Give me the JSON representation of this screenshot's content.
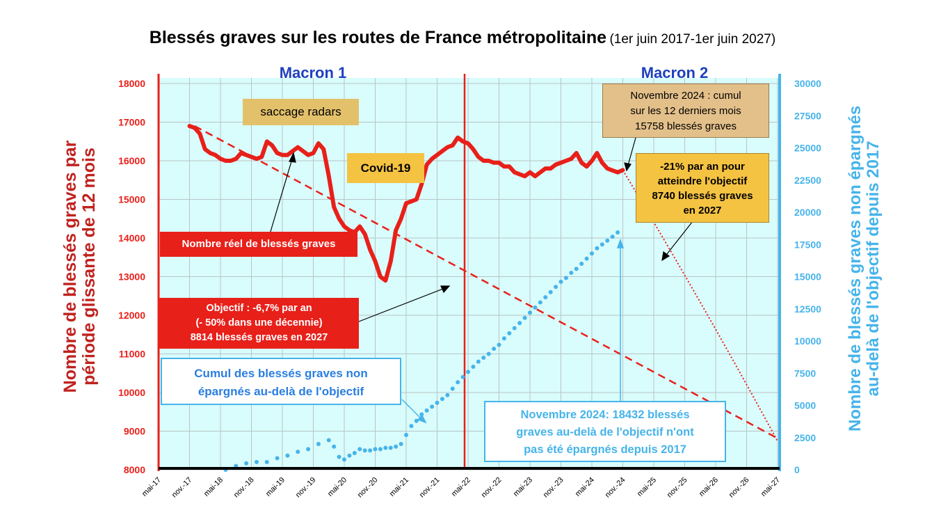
{
  "title": {
    "main": "Blessés graves sur les routes de France métropolitaine",
    "sub": "(1er juin 2017-1er juin 2027)"
  },
  "colors": {
    "red": "#e8201a",
    "plot_bg": "#d9fcfc",
    "blue": "#46b4ea",
    "navy": "#1f3fbf",
    "dark_red": "#c0221e"
  },
  "periods": {
    "macron1": "Macron 1",
    "macron2": "Macron 2"
  },
  "axes": {
    "left_label_line1": "Nombre de blessés graves par",
    "left_label_line2": "période glissante de 12 mois",
    "right_label_line1": "Nombre de blessés graves non épargnés",
    "right_label_line2": "au-delà de l'objectif depuis 2017",
    "left_ticks": [
      "18000",
      "17000",
      "16000",
      "15000",
      "14000",
      "13000",
      "12000",
      "11000",
      "10000",
      "9000",
      "8000"
    ],
    "right_ticks": [
      "30000",
      "27500",
      "25000",
      "22500",
      "20000",
      "17500",
      "15000",
      "12500",
      "10000",
      "7500",
      "5000",
      "2500",
      "0"
    ],
    "x_ticks": [
      "mai-17",
      "nov.-17",
      "mai-18",
      "nov.-18",
      "mai-19",
      "nov.-19",
      "mai-20",
      "nov.-20",
      "mai-21",
      "nov.-21",
      "mai-22",
      "nov.-22",
      "mai-23",
      "nov.-23",
      "mai-24",
      "nov.-24",
      "mai-25",
      "nov.-25",
      "mai-26",
      "nov.-26",
      "mai-27"
    ]
  },
  "annotations": {
    "saccage": "saccage radars",
    "covid": "Covid-19",
    "reel": "Nombre réel de blessés graves",
    "objectif_l1": "Objectif : -6,7% par an",
    "objectif_l2": "(- 50% dans une décennie)",
    "objectif_l3": "8814 blessés graves en 2027",
    "cumul_l1": "Cumul des blessés graves non",
    "cumul_l2": "épargnés  au-delà de l'objectif",
    "nov2024_l1": "Novembre 2024 : cumul",
    "nov2024_l2": "sur les 12 derniers mois",
    "nov2024_l3": "15758 blessés graves",
    "rate_l1": "-21% par an pour",
    "rate_l2": "atteindre l'objectif",
    "rate_l3": "8740 blessés graves",
    "rate_l4": "en 2027",
    "cumnov_l1": "Novembre 2024: 18432 blessés",
    "cumnov_l2": "graves au-delà de l'objectif n'ont",
    "cumnov_l3": "pas été épargnés depuis 2017"
  },
  "chart_data": {
    "type": "line",
    "x_unit": "months since mai-17",
    "left_axis": {
      "ylim": [
        8000,
        18000
      ]
    },
    "right_axis": {
      "ylim": [
        0,
        30000
      ]
    },
    "series": [
      {
        "name": "Nombre réel de blessés graves",
        "axis": "left",
        "style": "thick-solid",
        "x": [
          6,
          7,
          8,
          9,
          10,
          11,
          12,
          13,
          14,
          15,
          16,
          17,
          18,
          19,
          20,
          21,
          22,
          23,
          24,
          25,
          26,
          27,
          28,
          29,
          30,
          31,
          32,
          33,
          34,
          35,
          36,
          37,
          38,
          39,
          40,
          41,
          42,
          43,
          44,
          45,
          46,
          47,
          48,
          49,
          50,
          51,
          52,
          53,
          54,
          55,
          56,
          57,
          58,
          59,
          60,
          61,
          62,
          63,
          64,
          65,
          66,
          67,
          68,
          69,
          70,
          71,
          72,
          73,
          74,
          75,
          76,
          77,
          78,
          79,
          80,
          81,
          82,
          83,
          84,
          85,
          86,
          87,
          88,
          89,
          90
        ],
        "values": [
          16900,
          16850,
          16700,
          16300,
          16200,
          16150,
          16050,
          16000,
          16000,
          16050,
          16200,
          16150,
          16100,
          16050,
          16100,
          16500,
          16400,
          16200,
          16150,
          16150,
          16250,
          16350,
          16250,
          16150,
          16200,
          16450,
          16300,
          15600,
          14800,
          14500,
          14300,
          14200,
          14150,
          14300,
          14100,
          13700,
          13400,
          13000,
          12900,
          13400,
          14200,
          14500,
          14900,
          14950,
          15000,
          15400,
          15900,
          16050,
          16150,
          16250,
          16350,
          16400,
          16600,
          16500,
          16450,
          16300,
          16100,
          16000,
          16000,
          15950,
          15950,
          15850,
          15850,
          15700,
          15650,
          15600,
          15700,
          15600,
          15700,
          15800,
          15800,
          15900,
          15950,
          16000,
          16050,
          16200,
          15950,
          15850,
          16000,
          16200,
          15950,
          15800,
          15750,
          15700,
          15758
        ]
      },
      {
        "name": "Objectif : -6,7% par an",
        "axis": "left",
        "style": "red-dashed",
        "x": [
          7,
          120
        ],
        "values": [
          16900,
          8814
        ]
      },
      {
        "name": "-21% par an pour atteindre l'objectif",
        "axis": "left",
        "style": "red-dotted",
        "x": [
          90,
          120
        ],
        "values": [
          15758,
          8740
        ]
      },
      {
        "name": "Cumul des blessés graves non épargnés au-delà de l'objectif",
        "axis": "right",
        "style": "blue-dotted",
        "x": [
          13,
          15,
          17,
          19,
          21,
          23,
          25,
          27,
          29,
          31,
          33,
          34,
          35,
          36,
          37,
          38,
          39,
          40,
          41,
          42,
          43,
          44,
          45,
          46,
          47,
          48,
          49,
          50,
          51,
          52,
          53,
          54,
          55,
          56,
          57,
          58,
          59,
          60,
          61,
          62,
          63,
          64,
          65,
          66,
          67,
          68,
          69,
          70,
          71,
          72,
          73,
          74,
          75,
          76,
          77,
          78,
          79,
          80,
          81,
          82,
          83,
          84,
          85,
          86,
          87,
          88,
          89
        ],
        "values": [
          0,
          300,
          500,
          600,
          600,
          900,
          1100,
          1400,
          1600,
          2000,
          2300,
          1800,
          1000,
          800,
          1100,
          1300,
          1600,
          1500,
          1500,
          1600,
          1600,
          1700,
          1700,
          1800,
          2000,
          2700,
          3400,
          3800,
          4300,
          4600,
          4900,
          5200,
          5500,
          5800,
          6300,
          6800,
          7200,
          7600,
          8000,
          8400,
          8700,
          9000,
          9400,
          9700,
          10200,
          10600,
          11000,
          11400,
          11800,
          12200,
          12600,
          13000,
          13400,
          13800,
          14200,
          14600,
          14900,
          15300,
          15600,
          16000,
          16400,
          16800,
          17200,
          17500,
          17800,
          18100,
          18432
        ]
      }
    ]
  }
}
